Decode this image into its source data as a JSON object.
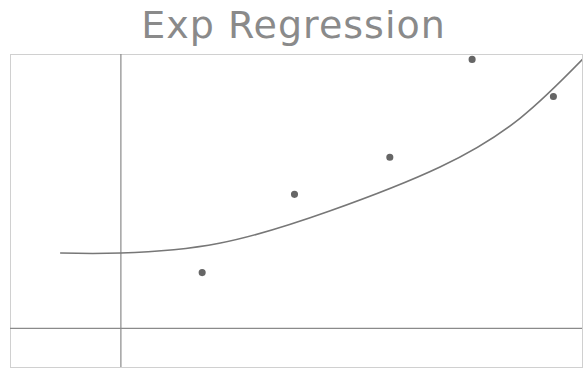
{
  "chart_data": {
    "type": "scatter",
    "title": "Exp Regression",
    "series": [
      {
        "type": "scatter",
        "marker": "circle",
        "color": "#666666",
        "x": [
          1.62,
          3.46,
          5.36,
          7.0,
          8.62
        ],
        "values": [
          1.14,
          2.74,
          3.5,
          5.5,
          4.74
        ]
      },
      {
        "type": "line",
        "line_style": "solid",
        "color": "#777777",
        "x": [
          -1.2,
          0,
          1.96,
          4.16,
          6.36,
          7.96,
          9.2
        ],
        "values": [
          1.54,
          1.54,
          1.74,
          2.4,
          3.3,
          4.3,
          5.5
        ]
      }
    ],
    "xlim": [
      -2.2,
      9.2
    ],
    "ylim": [
      -0.8,
      5.6
    ],
    "xticks": [],
    "yticks": [],
    "tick_labels": false,
    "grid": false
  }
}
